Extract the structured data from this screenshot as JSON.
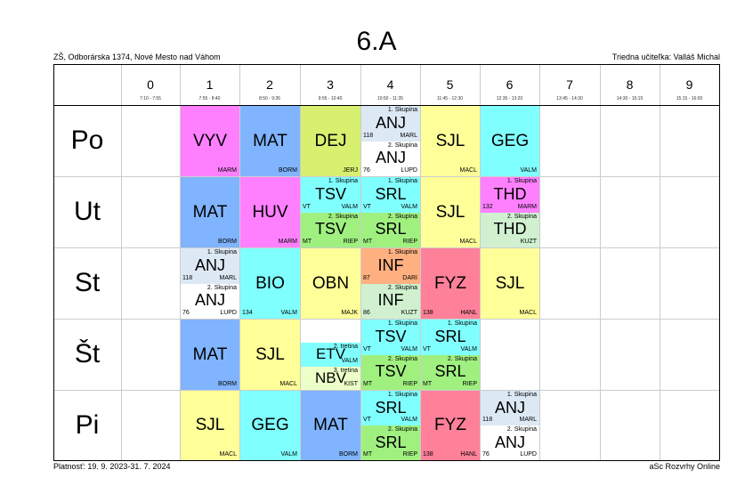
{
  "header": {
    "title": "6.A",
    "school": "ZŠ, Odborárska 1374, Nové Mesto nad Váhom",
    "teacher": "Triedna učiteľka: Valláš Michal"
  },
  "footer": {
    "validity": "Platnosť: 19. 9. 2023-31. 7. 2024",
    "brand": "aSc Rozvrhy Online"
  },
  "periods": [
    {
      "num": "0",
      "time": "7:10 - 7:55"
    },
    {
      "num": "1",
      "time": "7:55 - 8:40"
    },
    {
      "num": "2",
      "time": "8:50 - 9:35"
    },
    {
      "num": "3",
      "time": "9:55 - 10:40"
    },
    {
      "num": "4",
      "time": "10:50 - 11:35"
    },
    {
      "num": "5",
      "time": "11:45 - 12:30"
    },
    {
      "num": "6",
      "time": "12:35 - 13:20"
    },
    {
      "num": "7",
      "time": "13:45 - 14:30"
    },
    {
      "num": "8",
      "time": "14:30 - 15:15"
    },
    {
      "num": "9",
      "time": "15:15 - 16:00"
    }
  ],
  "days": [
    "Po",
    "Ut",
    "St",
    "Št",
    "Pi"
  ],
  "colors": {
    "pink": "#ff80ff",
    "blue": "#80b4ff",
    "green": "#d8f070",
    "cyan": "#80ffff",
    "yellow": "#ffff99",
    "lime": "#a0f080",
    "red": "#ff8099",
    "orange": "#ffb080",
    "lightblue": "#dce8f4",
    "white": "#ffffff",
    "lightgreen": "#d0f0d0",
    "lightyellow": "#ecffc8"
  },
  "lessons": [
    {
      "d": 0,
      "p": 1,
      "subject": "VYV",
      "teacher": "MARM",
      "room": "",
      "group": "",
      "color": "pink"
    },
    {
      "d": 0,
      "p": 2,
      "subject": "MAT",
      "teacher": "BORM",
      "room": "",
      "group": "",
      "color": "blue"
    },
    {
      "d": 0,
      "p": 3,
      "subject": "DEJ",
      "teacher": "JERJ",
      "room": "",
      "group": "",
      "color": "green"
    },
    {
      "d": 0,
      "p": 4,
      "part": 0,
      "parts": 2,
      "subject": "ANJ",
      "teacher": "MARL",
      "room": "118",
      "group": "1. Skupina",
      "color": "lightblue"
    },
    {
      "d": 0,
      "p": 4,
      "part": 1,
      "parts": 2,
      "subject": "ANJ",
      "teacher": "LUPD",
      "room": "76",
      "group": "2. Skupina",
      "color": "white"
    },
    {
      "d": 0,
      "p": 5,
      "subject": "SJL",
      "teacher": "MACL",
      "room": "",
      "group": "",
      "color": "yellow"
    },
    {
      "d": 0,
      "p": 6,
      "subject": "GEG",
      "teacher": "VALM",
      "room": "",
      "group": "",
      "color": "cyan"
    },
    {
      "d": 1,
      "p": 1,
      "subject": "MAT",
      "teacher": "BORM",
      "room": "",
      "group": "",
      "color": "blue"
    },
    {
      "d": 1,
      "p": 2,
      "subject": "HUV",
      "teacher": "MARM",
      "room": "",
      "group": "",
      "color": "pink"
    },
    {
      "d": 1,
      "p": 3,
      "part": 0,
      "parts": 2,
      "subject": "TSV",
      "teacher": "VALM",
      "room": "VT",
      "group": "1. Skupina",
      "color": "cyan"
    },
    {
      "d": 1,
      "p": 3,
      "part": 1,
      "parts": 2,
      "subject": "TSV",
      "teacher": "RIEP",
      "room": "MT",
      "group": "2. Skupina",
      "color": "lime"
    },
    {
      "d": 1,
      "p": 4,
      "part": 0,
      "parts": 2,
      "subject": "SRL",
      "teacher": "VALM",
      "room": "VT",
      "group": "1. Skupina",
      "color": "cyan"
    },
    {
      "d": 1,
      "p": 4,
      "part": 1,
      "parts": 2,
      "subject": "SRL",
      "teacher": "RIEP",
      "room": "MT",
      "group": "2. Skupina",
      "color": "lime"
    },
    {
      "d": 1,
      "p": 5,
      "subject": "SJL",
      "teacher": "MACL",
      "room": "",
      "group": "",
      "color": "yellow"
    },
    {
      "d": 1,
      "p": 6,
      "part": 0,
      "parts": 2,
      "subject": "THD",
      "teacher": "MARM",
      "room": "132",
      "group": "1. Skupina",
      "color": "pink"
    },
    {
      "d": 1,
      "p": 6,
      "part": 1,
      "parts": 2,
      "subject": "THD",
      "teacher": "KUZT",
      "room": "",
      "group": "2. Skupina",
      "color": "lightgreen"
    },
    {
      "d": 2,
      "p": 1,
      "part": 0,
      "parts": 2,
      "subject": "ANJ",
      "teacher": "MARL",
      "room": "118",
      "group": "1. Skupina",
      "color": "lightblue"
    },
    {
      "d": 2,
      "p": 1,
      "part": 1,
      "parts": 2,
      "subject": "ANJ",
      "teacher": "LUPD",
      "room": "76",
      "group": "2. Skupina",
      "color": "white"
    },
    {
      "d": 2,
      "p": 2,
      "subject": "BIO",
      "teacher": "VALM",
      "room": "134",
      "group": "",
      "color": "cyan"
    },
    {
      "d": 2,
      "p": 3,
      "subject": "OBN",
      "teacher": "MAJK",
      "room": "",
      "group": "",
      "color": "yellow"
    },
    {
      "d": 2,
      "p": 4,
      "part": 0,
      "parts": 2,
      "subject": "INF",
      "teacher": "DARI",
      "room": "87",
      "group": "1. Skupina",
      "color": "orange"
    },
    {
      "d": 2,
      "p": 4,
      "part": 1,
      "parts": 2,
      "subject": "INF",
      "teacher": "KUZT",
      "room": "86",
      "group": "2. Skupina",
      "color": "lightgreen"
    },
    {
      "d": 2,
      "p": 5,
      "subject": "FYZ",
      "teacher": "HANL",
      "room": "138",
      "group": "",
      "color": "red"
    },
    {
      "d": 2,
      "p": 6,
      "subject": "SJL",
      "teacher": "MACL",
      "room": "",
      "group": "",
      "color": "yellow"
    },
    {
      "d": 3,
      "p": 1,
      "subject": "MAT",
      "teacher": "BORM",
      "room": "",
      "group": "",
      "color": "blue"
    },
    {
      "d": 3,
      "p": 2,
      "subject": "SJL",
      "teacher": "MACL",
      "room": "",
      "group": "",
      "color": "yellow"
    },
    {
      "d": 3,
      "p": 3,
      "part": 1,
      "parts": 3,
      "subject": "ETV",
      "teacher": "VALM",
      "room": "",
      "group": "2. tretina",
      "color": "cyan"
    },
    {
      "d": 3,
      "p": 3,
      "part": 2,
      "parts": 3,
      "subject": "NBV",
      "teacher": "KIST",
      "room": "",
      "group": "3. tretina",
      "color": "lightyellow"
    },
    {
      "d": 3,
      "p": 4,
      "part": 0,
      "parts": 2,
      "subject": "TSV",
      "teacher": "VALM",
      "room": "VT",
      "group": "1. Skupina",
      "color": "cyan"
    },
    {
      "d": 3,
      "p": 4,
      "part": 1,
      "parts": 2,
      "subject": "TSV",
      "teacher": "RIEP",
      "room": "MT",
      "group": "2. Skupina",
      "color": "lime"
    },
    {
      "d": 3,
      "p": 5,
      "part": 0,
      "parts": 2,
      "subject": "SRL",
      "teacher": "VALM",
      "room": "VT",
      "group": "1. Skupina",
      "color": "cyan"
    },
    {
      "d": 3,
      "p": 5,
      "part": 1,
      "parts": 2,
      "subject": "SRL",
      "teacher": "RIEP",
      "room": "MT",
      "group": "2. Skupina",
      "color": "lime"
    },
    {
      "d": 4,
      "p": 1,
      "subject": "SJL",
      "teacher": "MACL",
      "room": "",
      "group": "",
      "color": "yellow"
    },
    {
      "d": 4,
      "p": 2,
      "subject": "GEG",
      "teacher": "VALM",
      "room": "",
      "group": "",
      "color": "cyan"
    },
    {
      "d": 4,
      "p": 3,
      "subject": "MAT",
      "teacher": "BORM",
      "room": "",
      "group": "",
      "color": "blue"
    },
    {
      "d": 4,
      "p": 4,
      "part": 0,
      "parts": 2,
      "subject": "SRL",
      "teacher": "VALM",
      "room": "VT",
      "group": "1. Skupina",
      "color": "cyan"
    },
    {
      "d": 4,
      "p": 4,
      "part": 1,
      "parts": 2,
      "subject": "SRL",
      "teacher": "RIEP",
      "room": "MT",
      "group": "2. Skupina",
      "color": "lime"
    },
    {
      "d": 4,
      "p": 5,
      "subject": "FYZ",
      "teacher": "HANL",
      "room": "138",
      "group": "",
      "color": "red"
    },
    {
      "d": 4,
      "p": 6,
      "part": 0,
      "parts": 2,
      "subject": "ANJ",
      "teacher": "MARL",
      "room": "118",
      "group": "1. Skupina",
      "color": "lightblue"
    },
    {
      "d": 4,
      "p": 6,
      "part": 1,
      "parts": 2,
      "subject": "ANJ",
      "teacher": "LUPD",
      "room": "76",
      "group": "2. Skupina",
      "color": "white"
    }
  ]
}
